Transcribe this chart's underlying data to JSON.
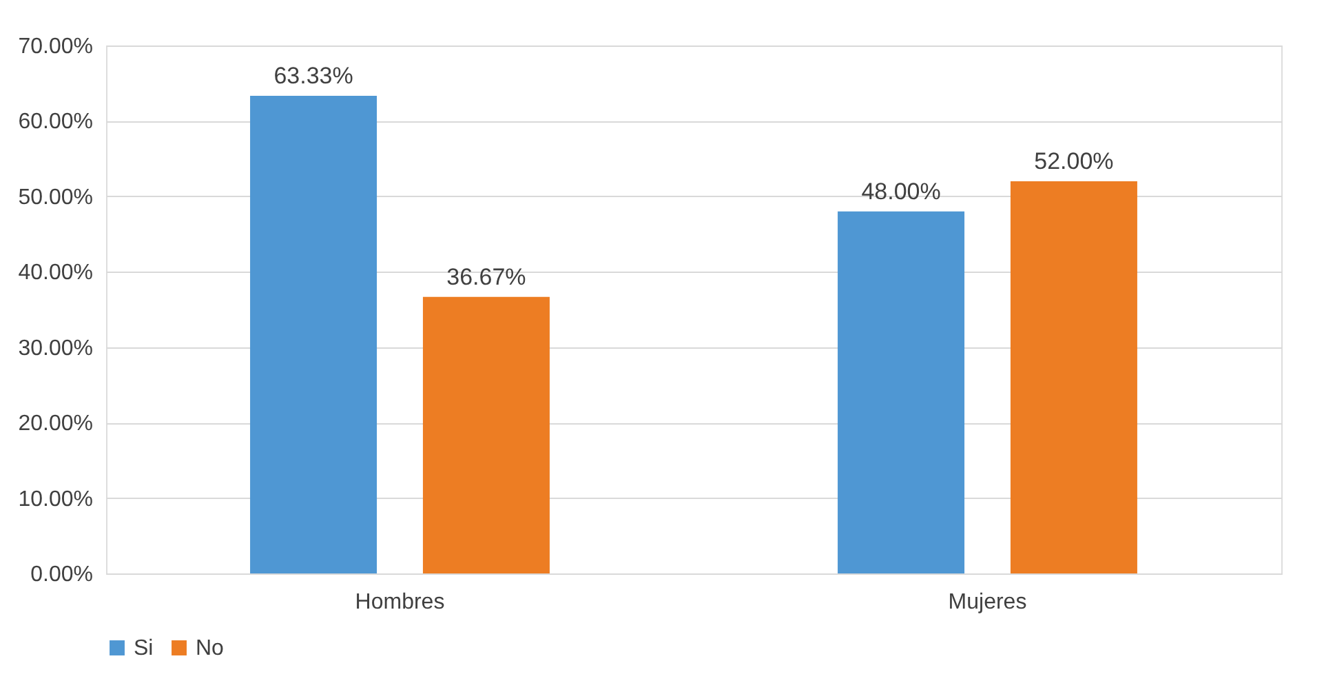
{
  "chart_data": {
    "type": "bar",
    "categories": [
      "Hombres",
      "Mujeres"
    ],
    "series": [
      {
        "name": "Si",
        "color": "#4f97d3",
        "values": [
          63.33,
          48.0
        ],
        "value_labels": [
          "63.33%",
          "48.00%"
        ]
      },
      {
        "name": "No",
        "color": "#ed7d23",
        "values": [
          36.67,
          52.0
        ],
        "value_labels": [
          "36.67%",
          "52.00%"
        ]
      }
    ],
    "ylim": [
      0,
      70
    ],
    "yticks": [
      {
        "value": 0,
        "label": "0.00%"
      },
      {
        "value": 10,
        "label": "10.00%"
      },
      {
        "value": 20,
        "label": "20.00%"
      },
      {
        "value": 30,
        "label": "30.00%"
      },
      {
        "value": 40,
        "label": "40.00%"
      },
      {
        "value": 50,
        "label": "50.00%"
      },
      {
        "value": 60,
        "label": "60.00%"
      },
      {
        "value": 70,
        "label": "70.00%"
      }
    ],
    "grid": "y",
    "legend": "bottom"
  }
}
